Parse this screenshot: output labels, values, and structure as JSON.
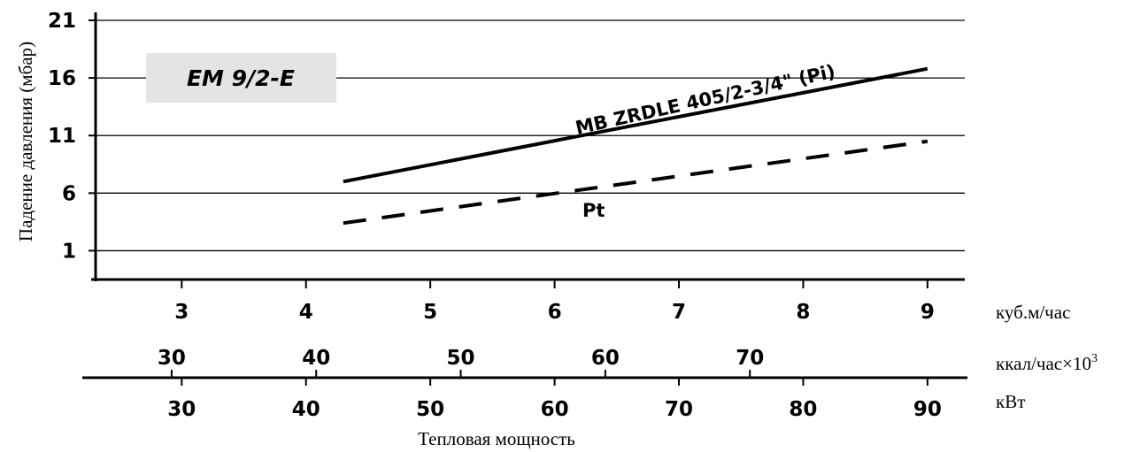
{
  "chart_data": {
    "type": "line",
    "ylabel": "Падение давления (мбар)",
    "xlabel": "Тепловая мощность",
    "model_label": "EM 9/2-E",
    "y_ticks": [
      1,
      6,
      11,
      16,
      21
    ],
    "ylim": [
      -1.5,
      21
    ],
    "x_axes": [
      {
        "unit": "куб.м/час",
        "ticks": [
          "3",
          "4",
          "5",
          "6",
          "7",
          "8",
          "9"
        ]
      },
      {
        "unit": "ккал/час×10",
        "unit_sup": "3",
        "ticks": [
          "30",
          "40",
          "50",
          "60",
          "70"
        ]
      },
      {
        "unit": "кВт",
        "ticks": [
          "30",
          "40",
          "50",
          "60",
          "70",
          "80",
          "90"
        ]
      }
    ],
    "xlim_m3h": [
      2.3,
      9.3
    ],
    "grid": true,
    "series": [
      {
        "name": "MB ZRDLE 405/2-3/4\" (Pi)",
        "style": "solid",
        "x": [
          4.3,
          9.0
        ],
        "y": [
          7.0,
          16.8
        ]
      },
      {
        "name": "Pt",
        "style": "dashed",
        "x": [
          4.3,
          9.0
        ],
        "y": [
          3.4,
          10.5
        ]
      }
    ]
  }
}
